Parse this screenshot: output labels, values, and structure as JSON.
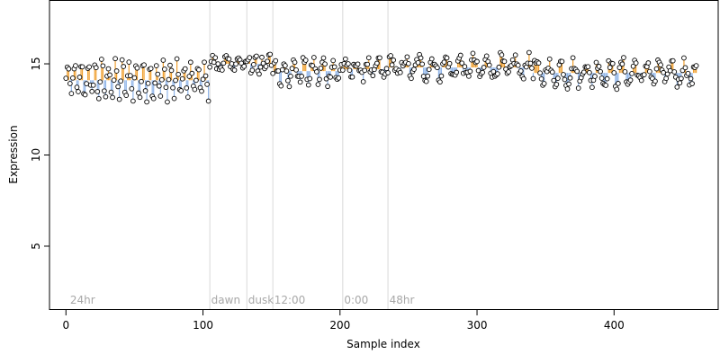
{
  "chart_data": {
    "type": "scatter",
    "title": "",
    "xlabel": "Sample index",
    "ylabel": "Expression",
    "xlim": [
      -12,
      476
    ],
    "ylim": [
      1.5,
      18.5
    ],
    "x_ticks": [
      0,
      100,
      200,
      300,
      400
    ],
    "y_ticks": [
      5,
      10,
      15
    ],
    "grid": false,
    "colors": {
      "point_fill": "#ffffff",
      "point_stroke": "#000000",
      "above_stem": "#f0a030",
      "below_stem": "#8fb4e8",
      "vline": "#d9d9d9",
      "annotation": "#a8a8a8",
      "axis": "#000000"
    },
    "annotations": [
      {
        "x": 3,
        "label": "24hr"
      },
      {
        "x": 106,
        "label": "dawn"
      },
      {
        "x": 133,
        "label": "dusk"
      },
      {
        "x": 152,
        "label": "12:00"
      },
      {
        "x": 203,
        "label": "0:00"
      },
      {
        "x": 236,
        "label": "48hr"
      }
    ],
    "vertical_lines": [
      105,
      132,
      151,
      202,
      235
    ],
    "segments": [
      {
        "x_start": 0,
        "x_end": 104,
        "baseline": 14.1,
        "amplitude": 0.9,
        "period": 5
      },
      {
        "x_start": 105,
        "x_end": 131,
        "baseline": 15.0,
        "amplitude": 0.25,
        "period": 9
      },
      {
        "x_start": 132,
        "x_end": 150,
        "baseline": 15.0,
        "amplitude": 0.5,
        "period": 5
      },
      {
        "x_start": 151,
        "x_end": 201,
        "baseline": 14.6,
        "amplitude": 0.6,
        "period": 7
      },
      {
        "x_start": 202,
        "x_end": 234,
        "baseline": 14.7,
        "amplitude": 0.5,
        "period": 8
      },
      {
        "x_start": 235,
        "x_end": 340,
        "baseline": 14.8,
        "amplitude": 0.5,
        "period": 10
      },
      {
        "x_start": 341,
        "x_end": 460,
        "baseline": 14.5,
        "amplitude": 0.6,
        "period": 9
      }
    ],
    "n_points": 461,
    "y_range_observed": [
      12.6,
      15.9
    ]
  }
}
